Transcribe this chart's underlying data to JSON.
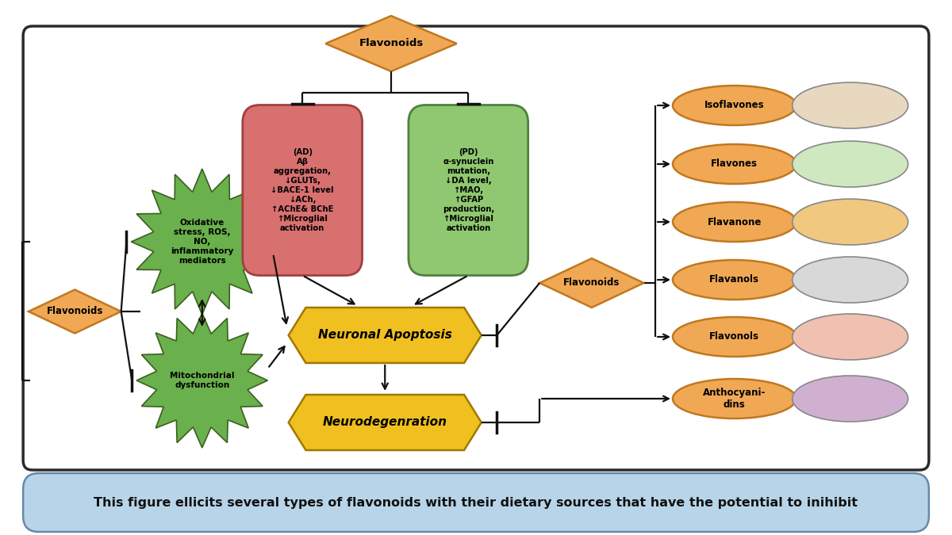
{
  "caption": "This figure ellicits several types of flavonoids with their dietary sources that have the potential to inihibit",
  "bg_color": "#ffffff",
  "border_color": "#2a2a2a",
  "caption_bg": "#b8d4e8",
  "flavonoid_diamond_color": "#f0a855",
  "flavonoid_diamond_ec": "#c07820",
  "ad_box_color": "#d97070",
  "ad_box_ec": "#a04040",
  "ad_box_text": "(AD)\nAβ\naggregation,\n↓GLUTs,\n↓BACE-1 level\n↓ACh,\n↑AChE& BChE\n↑Microglial\nactivation",
  "pd_box_color": "#8fc870",
  "pd_box_ec": "#508040",
  "pd_box_text": "(PD)\nα-synuclein\nmutation,\n↓DA level,\n↑MAO,\n↑GFAP\nproduction,\n↑Microglial\nactivation",
  "oxidative_color": "#6ab04c",
  "oxidative_ec": "#3a6020",
  "oxidative_text": "Oxidative\nstress, ROS,\nNO,\ninflammatory\nmediators",
  "mito_color": "#6ab04c",
  "mito_ec": "#3a6020",
  "mito_text": "Mitochondrial\ndysfunction",
  "neuronal_color": "#f0c020",
  "neuronal_ec": "#a07800",
  "neuronal_text": "Neuronal Apoptosis",
  "neurodegeneration_color": "#f0c020",
  "neurodegeneration_ec": "#a07800",
  "neurodegeneration_text": "Neurodegenration",
  "flavonoids_right_diamond": "Flavonoids",
  "flavonoid_types": [
    "Isoflavones",
    "Flavones",
    "Flavanone",
    "Flavanols",
    "Flavonols",
    "Anthocyani-\ndins"
  ],
  "flavonoid_oval_color": "#f0a855",
  "flavonoid_oval_ec": "#c07820",
  "arrow_color": "#111111",
  "left_flavonoid_diamond": "Flavonoids",
  "top_flavonoid_diamond": "Flavonoids"
}
